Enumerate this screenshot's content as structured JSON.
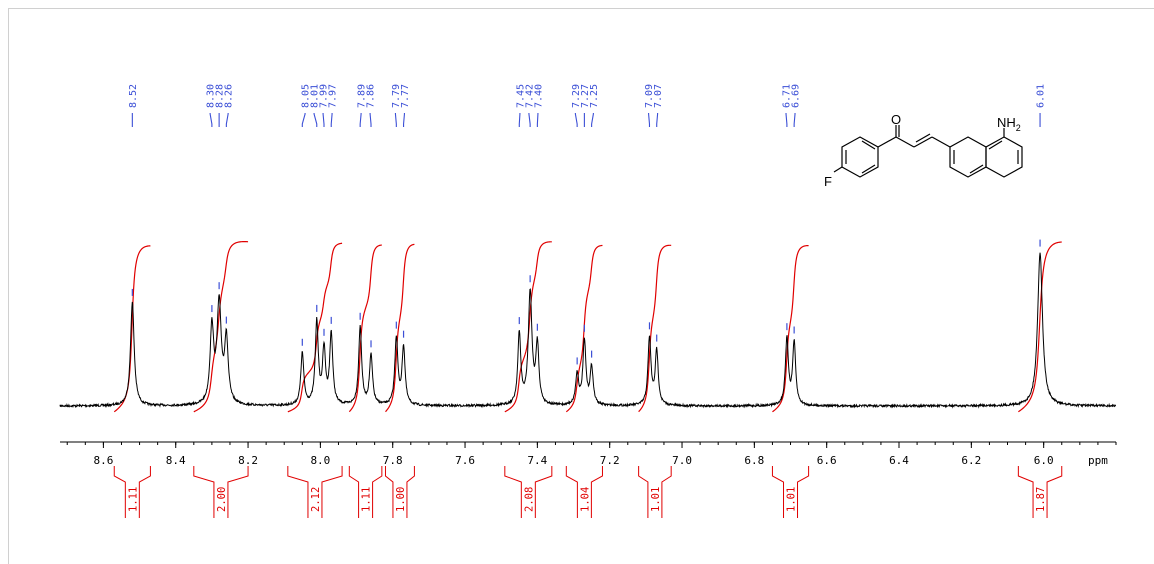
{
  "chart_data": {
    "type": "line",
    "title": "",
    "xlabel": "ppm",
    "ylabel": "",
    "xlim": [
      8.72,
      5.8
    ],
    "x_ticks": [
      "8.6",
      "8.4",
      "8.2",
      "8.0",
      "7.8",
      "7.6",
      "7.4",
      "7.2",
      "7.0",
      "6.8",
      "6.6",
      "6.4",
      "6.2",
      "6.0"
    ],
    "grid": false,
    "legend": "none",
    "series": [
      {
        "peaks": [
          {
            "ppm": 8.52,
            "height": 0.88,
            "width": 0.006
          },
          {
            "ppm": 8.3,
            "height": 0.64,
            "width": 0.006
          },
          {
            "ppm": 8.28,
            "height": 0.84,
            "width": 0.007
          },
          {
            "ppm": 8.26,
            "height": 0.54,
            "width": 0.006
          },
          {
            "ppm": 8.05,
            "height": 0.44,
            "width": 0.005
          },
          {
            "ppm": 8.01,
            "height": 0.7,
            "width": 0.005
          },
          {
            "ppm": 7.99,
            "height": 0.46,
            "width": 0.005
          },
          {
            "ppm": 7.97,
            "height": 0.6,
            "width": 0.005
          },
          {
            "ppm": 7.89,
            "height": 0.66,
            "width": 0.005
          },
          {
            "ppm": 7.86,
            "height": 0.42,
            "width": 0.005
          },
          {
            "ppm": 7.79,
            "height": 0.57,
            "width": 0.005
          },
          {
            "ppm": 7.77,
            "height": 0.49,
            "width": 0.005
          },
          {
            "ppm": 7.45,
            "height": 0.6,
            "width": 0.005
          },
          {
            "ppm": 7.42,
            "height": 0.95,
            "width": 0.006
          },
          {
            "ppm": 7.4,
            "height": 0.5,
            "width": 0.005
          },
          {
            "ppm": 7.29,
            "height": 0.26,
            "width": 0.005
          },
          {
            "ppm": 7.27,
            "height": 0.54,
            "width": 0.005
          },
          {
            "ppm": 7.25,
            "height": 0.32,
            "width": 0.005
          },
          {
            "ppm": 7.09,
            "height": 0.57,
            "width": 0.005
          },
          {
            "ppm": 7.07,
            "height": 0.46,
            "width": 0.005
          },
          {
            "ppm": 6.71,
            "height": 0.56,
            "width": 0.005
          },
          {
            "ppm": 6.69,
            "height": 0.53,
            "width": 0.005
          },
          {
            "ppm": 6.01,
            "height": 1.3,
            "width": 0.008
          }
        ]
      }
    ],
    "peak_labels": [
      {
        "ppm_values": [
          "8.52"
        ]
      },
      {
        "ppm_values": [
          "8.30",
          "8.28",
          "8.26"
        ]
      },
      {
        "ppm_values": [
          "8.05",
          "8.01",
          "7.99",
          "7.97"
        ]
      },
      {
        "ppm_values": [
          "7.89",
          "7.86"
        ]
      },
      {
        "ppm_values": [
          "7.79",
          "7.77"
        ]
      },
      {
        "ppm_values": [
          "7.45",
          "7.42",
          "7.40"
        ]
      },
      {
        "ppm_values": [
          "7.29",
          "7.27",
          "7.25"
        ]
      },
      {
        "ppm_values": [
          "7.09",
          "7.07"
        ]
      },
      {
        "ppm_values": [
          "6.71",
          "6.69"
        ]
      },
      {
        "ppm_values": [
          "6.01"
        ]
      }
    ],
    "integrals": [
      {
        "from": 8.57,
        "to": 8.47,
        "value": "1.11"
      },
      {
        "from": 8.35,
        "to": 8.2,
        "value": "2.00"
      },
      {
        "from": 8.09,
        "to": 7.94,
        "value": "2.12"
      },
      {
        "from": 7.92,
        "to": 7.83,
        "value": "1.11"
      },
      {
        "from": 7.82,
        "to": 7.74,
        "value": "1.00"
      },
      {
        "from": 7.49,
        "to": 7.36,
        "value": "2.08"
      },
      {
        "from": 7.32,
        "to": 7.22,
        "value": "1.04"
      },
      {
        "from": 7.12,
        "to": 7.03,
        "value": "1.01"
      },
      {
        "from": 6.75,
        "to": 6.65,
        "value": "1.01"
      },
      {
        "from": 6.07,
        "to": 5.95,
        "value": "1.87"
      }
    ],
    "colors": {
      "spectrum": "#000000",
      "peak_labels": "#3b4fd6",
      "integrals": "#e00000"
    }
  },
  "molecule": {
    "atoms": {
      "oxygen": "O",
      "amine": "NH",
      "amine_sub": "2",
      "fluorine": "F"
    }
  }
}
